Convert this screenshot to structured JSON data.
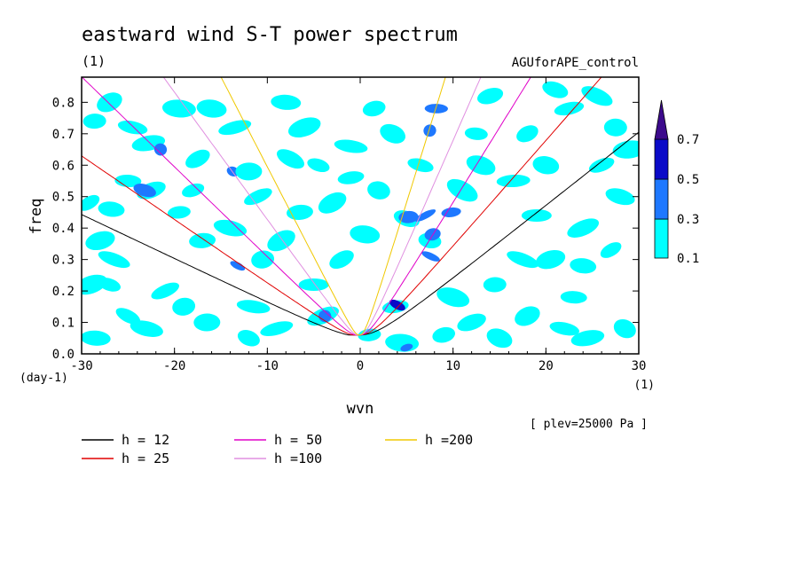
{
  "chart_data": {
    "type": "heatmap",
    "title": "eastward wind S-T power spectrum",
    "units_label": "(1)",
    "experiment": "AGUforAPE_control",
    "xlabel": "wvn",
    "ylabel": "freq",
    "x_units": "(1)",
    "y_units": "(day-1)",
    "xlim": [
      -30,
      30
    ],
    "ylim": [
      0,
      0.88
    ],
    "x_ticks": [
      "-30",
      "-20",
      "-10",
      "0",
      "10",
      "20",
      "30"
    ],
    "y_ticks": [
      "0.0",
      "0.1",
      "0.2",
      "0.3",
      "0.4",
      "0.5",
      "0.6",
      "0.7",
      "0.8"
    ],
    "level_note": "[ plev=25000 Pa ]",
    "colorbar": {
      "levels": [
        "0.1",
        "0.3",
        "0.5",
        "0.7"
      ],
      "colors": [
        "#00ffff",
        "#1e78ff",
        "#0a0ac8",
        "#3c0a8c"
      ]
    },
    "patches": [
      {
        "x": -29.2,
        "y": 0.48,
        "level": 1
      },
      {
        "x": -26.8,
        "y": 0.46,
        "level": 1
      },
      {
        "x": -28.0,
        "y": 0.36,
        "level": 1
      },
      {
        "x": -26.5,
        "y": 0.3,
        "level": 1
      },
      {
        "x": -28.6,
        "y": 0.74,
        "level": 1
      },
      {
        "x": -27.0,
        "y": 0.8,
        "level": 1
      },
      {
        "x": -24.5,
        "y": 0.72,
        "level": 1
      },
      {
        "x": -22.8,
        "y": 0.67,
        "level": 1
      },
      {
        "x": -21.5,
        "y": 0.65,
        "level": 2
      },
      {
        "x": -25.0,
        "y": 0.55,
        "level": 1
      },
      {
        "x": -22.5,
        "y": 0.52,
        "level": 1
      },
      {
        "x": -23.2,
        "y": 0.52,
        "level": 2
      },
      {
        "x": -19.5,
        "y": 0.45,
        "level": 1
      },
      {
        "x": -17.5,
        "y": 0.62,
        "level": 1
      },
      {
        "x": -16.0,
        "y": 0.78,
        "level": 1
      },
      {
        "x": -13.5,
        "y": 0.72,
        "level": 1
      },
      {
        "x": -13.7,
        "y": 0.58,
        "level": 2
      },
      {
        "x": -12.0,
        "y": 0.58,
        "level": 1
      },
      {
        "x": -11.0,
        "y": 0.5,
        "level": 1
      },
      {
        "x": -14.0,
        "y": 0.4,
        "level": 1
      },
      {
        "x": -10.5,
        "y": 0.3,
        "level": 1
      },
      {
        "x": -13.2,
        "y": 0.28,
        "level": 2
      },
      {
        "x": -8.0,
        "y": 0.8,
        "level": 1
      },
      {
        "x": -6.0,
        "y": 0.72,
        "level": 1
      },
      {
        "x": -4.5,
        "y": 0.6,
        "level": 1
      },
      {
        "x": -6.5,
        "y": 0.45,
        "level": 1
      },
      {
        "x": -3.0,
        "y": 0.48,
        "level": 1
      },
      {
        "x": -1.0,
        "y": 0.66,
        "level": 1
      },
      {
        "x": 1.5,
        "y": 0.78,
        "level": 1
      },
      {
        "x": 3.5,
        "y": 0.7,
        "level": 1
      },
      {
        "x": -5.0,
        "y": 0.22,
        "level": 1
      },
      {
        "x": -4.0,
        "y": 0.12,
        "level": 1
      },
      {
        "x": -3.8,
        "y": 0.12,
        "level": 2
      },
      {
        "x": 3.8,
        "y": 0.15,
        "level": 1
      },
      {
        "x": 4.0,
        "y": 0.155,
        "level": 3
      },
      {
        "x": 4.5,
        "y": 0.035,
        "level": 1
      },
      {
        "x": 5.0,
        "y": 0.02,
        "level": 2
      },
      {
        "x": 5.0,
        "y": 0.43,
        "level": 1
      },
      {
        "x": 5.2,
        "y": 0.435,
        "level": 2
      },
      {
        "x": 7.0,
        "y": 0.44,
        "level": 2
      },
      {
        "x": 7.5,
        "y": 0.36,
        "level": 1
      },
      {
        "x": 7.8,
        "y": 0.38,
        "level": 2
      },
      {
        "x": 7.6,
        "y": 0.31,
        "level": 2
      },
      {
        "x": 8.2,
        "y": 0.78,
        "level": 2
      },
      {
        "x": 7.5,
        "y": 0.71,
        "level": 2
      },
      {
        "x": 6.5,
        "y": 0.6,
        "level": 1
      },
      {
        "x": 9.8,
        "y": 0.45,
        "level": 2
      },
      {
        "x": 11.0,
        "y": 0.52,
        "level": 1
      },
      {
        "x": 12.5,
        "y": 0.7,
        "level": 1
      },
      {
        "x": 14.0,
        "y": 0.82,
        "level": 1
      },
      {
        "x": 13.0,
        "y": 0.6,
        "level": 1
      },
      {
        "x": 16.5,
        "y": 0.55,
        "level": 1
      },
      {
        "x": 18.0,
        "y": 0.7,
        "level": 1
      },
      {
        "x": 20.0,
        "y": 0.6,
        "level": 1
      },
      {
        "x": 22.5,
        "y": 0.78,
        "level": 1
      },
      {
        "x": 25.5,
        "y": 0.82,
        "level": 1
      },
      {
        "x": 27.5,
        "y": 0.72,
        "level": 1
      },
      {
        "x": 26.0,
        "y": 0.6,
        "level": 1
      },
      {
        "x": 28.0,
        "y": 0.5,
        "level": 1
      },
      {
        "x": 29.0,
        "y": 0.65,
        "level": 1
      },
      {
        "x": 27.0,
        "y": 0.33,
        "level": 1
      },
      {
        "x": 24.0,
        "y": 0.28,
        "level": 1
      },
      {
        "x": 20.5,
        "y": 0.3,
        "level": 1
      },
      {
        "x": 17.5,
        "y": 0.3,
        "level": 1
      },
      {
        "x": 14.5,
        "y": 0.22,
        "level": 1
      },
      {
        "x": 18.0,
        "y": 0.12,
        "level": 1
      },
      {
        "x": 22.0,
        "y": 0.08,
        "level": 1
      },
      {
        "x": 24.5,
        "y": 0.05,
        "level": 1
      },
      {
        "x": 28.5,
        "y": 0.08,
        "level": 1
      },
      {
        "x": 23.0,
        "y": 0.18,
        "level": 1
      },
      {
        "x": 12.0,
        "y": 0.1,
        "level": 1
      },
      {
        "x": 10.0,
        "y": 0.18,
        "level": 1
      },
      {
        "x": 1.0,
        "y": 0.06,
        "level": 1
      },
      {
        "x": -2.0,
        "y": 0.3,
        "level": 1
      },
      {
        "x": 0.5,
        "y": 0.38,
        "level": 1
      },
      {
        "x": -9.0,
        "y": 0.08,
        "level": 1
      },
      {
        "x": -12.0,
        "y": 0.05,
        "level": 1
      },
      {
        "x": -16.5,
        "y": 0.1,
        "level": 1
      },
      {
        "x": -21.0,
        "y": 0.2,
        "level": 1
      },
      {
        "x": -23.0,
        "y": 0.08,
        "level": 1
      },
      {
        "x": -19.0,
        "y": 0.15,
        "level": 1
      },
      {
        "x": -25.0,
        "y": 0.12,
        "level": 1
      },
      {
        "x": -28.5,
        "y": 0.05,
        "level": 1
      },
      {
        "x": -29.0,
        "y": 0.22,
        "level": 1
      },
      {
        "x": -27.0,
        "y": 0.22,
        "level": 1
      },
      {
        "x": -17.0,
        "y": 0.36,
        "level": 1
      },
      {
        "x": -8.5,
        "y": 0.36,
        "level": 1
      },
      {
        "x": -11.5,
        "y": 0.15,
        "level": 1
      },
      {
        "x": 9.0,
        "y": 0.06,
        "level": 1
      },
      {
        "x": 15.0,
        "y": 0.05,
        "level": 1
      },
      {
        "x": 19.0,
        "y": 0.44,
        "level": 1
      },
      {
        "x": 24.0,
        "y": 0.4,
        "level": 1
      },
      {
        "x": 2.0,
        "y": 0.52,
        "level": 1
      },
      {
        "x": -1.0,
        "y": 0.56,
        "level": 1
      },
      {
        "x": -7.5,
        "y": 0.62,
        "level": 1
      },
      {
        "x": -19.5,
        "y": 0.78,
        "level": 1
      },
      {
        "x": -18.0,
        "y": 0.52,
        "level": 1
      },
      {
        "x": 21.0,
        "y": 0.84,
        "level": 1
      }
    ],
    "series": [
      {
        "name": "h = 12",
        "h": 12,
        "color": "#000000"
      },
      {
        "name": "h = 25",
        "h": 25,
        "color": "#e00000"
      },
      {
        "name": "h = 50",
        "h": 50,
        "color": "#e000c8"
      },
      {
        "name": "h =100",
        "h": 100,
        "color": "#e090e0"
      },
      {
        "name": "h =200",
        "h": 200,
        "color": "#f0c800"
      }
    ]
  }
}
